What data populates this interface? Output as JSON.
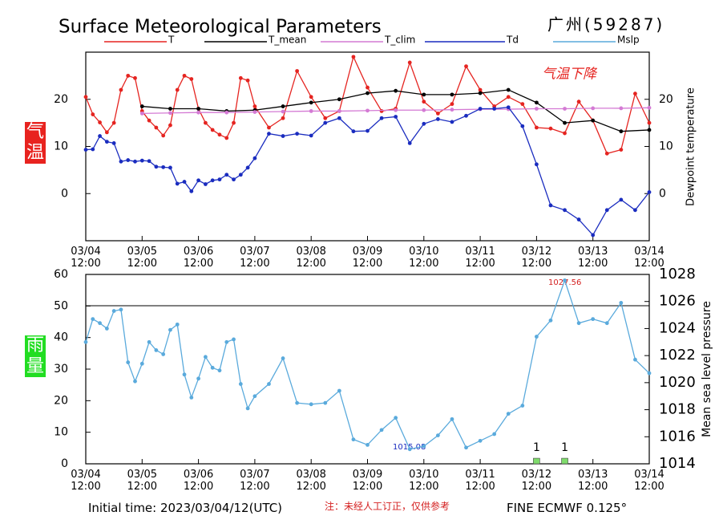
{
  "chart_data": [
    {
      "type": "line",
      "title": "Surface Meteorological Parameters",
      "station": "广州(59287)",
      "ylabel": "气温",
      "y2label": "Dewpoint temperature",
      "annotation": "气温下降",
      "xlim": [
        "03/04 12:00",
        "03/14 12:00"
      ],
      "xticks": [
        "03/04 12:00",
        "03/05 12:00",
        "03/06 12:00",
        "03/07 12:00",
        "03/08 12:00",
        "03/09 12:00",
        "03/10 12:00",
        "03/11 12:00",
        "03/12 12:00",
        "03/13 12:00",
        "03/14 12:00"
      ],
      "ylim": [
        -10,
        30
      ],
      "yticks": [
        0,
        10,
        20
      ],
      "y2lim": [
        -10,
        30
      ],
      "y2ticks": [
        0,
        10,
        20
      ],
      "x": [
        "03/04 12:00",
        "03/04 15:00",
        "03/04 18:00",
        "03/04 21:00",
        "03/05 00:00",
        "03/05 03:00",
        "03/05 06:00",
        "03/05 09:00",
        "03/05 12:00",
        "03/05 15:00",
        "03/05 18:00",
        "03/05 21:00",
        "03/06 00:00",
        "03/06 03:00",
        "03/06 06:00",
        "03/06 09:00",
        "03/06 12:00",
        "03/06 15:00",
        "03/06 18:00",
        "03/06 21:00",
        "03/07 00:00",
        "03/07 03:00",
        "03/07 06:00",
        "03/07 09:00",
        "03/07 12:00",
        "03/07 18:00",
        "03/08 00:00",
        "03/08 06:00",
        "03/08 12:00",
        "03/08 18:00",
        "03/09 00:00",
        "03/09 06:00",
        "03/09 12:00",
        "03/09 18:00",
        "03/10 00:00",
        "03/10 06:00",
        "03/10 12:00",
        "03/10 18:00",
        "03/11 00:00",
        "03/11 06:00",
        "03/11 12:00",
        "03/11 18:00",
        "03/12 00:00",
        "03/12 06:00",
        "03/12 12:00",
        "03/12 18:00",
        "03/13 00:00",
        "03/13 06:00",
        "03/13 12:00",
        "03/13 18:00",
        "03/14 00:00",
        "03/14 06:00",
        "03/14 12:00"
      ],
      "series": [
        {
          "name": "T",
          "color": "#e52420",
          "markers": true,
          "values": [
            20.5,
            16.8,
            15.1,
            13,
            15,
            22,
            25,
            24.5,
            17.5,
            15.5,
            14,
            12.3,
            14.5,
            22,
            25,
            24.3,
            18,
            15,
            13.5,
            12.5,
            11.8,
            15,
            24.5,
            24,
            18.5,
            14,
            16,
            26,
            20.5,
            16,
            17.5,
            29,
            22.5,
            17.5,
            18,
            27.8,
            19.5,
            17,
            19,
            27,
            22,
            18.5,
            20.5,
            19,
            14,
            13.8,
            12.8,
            19.5,
            15.5,
            8.5,
            9.3,
            21.2,
            15
          ]
        },
        {
          "name": "T_mean",
          "color": "#000000",
          "markers": true,
          "x": [
            "03/05 12:00",
            "03/06 00:00",
            "03/06 12:00",
            "03/07 00:00",
            "03/07 12:00",
            "03/08 00:00",
            "03/08 12:00",
            "03/09 00:00",
            "03/09 12:00",
            "03/10 00:00",
            "03/10 12:00",
            "03/11 00:00",
            "03/11 12:00",
            "03/12 00:00",
            "03/12 12:00",
            "03/13 00:00",
            "03/13 12:00",
            "03/14 00:00",
            "03/14 12:00"
          ],
          "values": [
            18.5,
            18,
            18,
            17.5,
            17.7,
            18.5,
            19.3,
            20,
            21.3,
            21.8,
            21,
            21,
            21.3,
            22,
            19.3,
            15,
            15.5,
            13.2,
            13.5
          ]
        },
        {
          "name": "T_clim",
          "color": "#d47ad4",
          "markers": true,
          "x": [
            "03/05 12:00",
            "03/06 00:00",
            "03/06 12:00",
            "03/07 00:00",
            "03/07 12:00",
            "03/08 00:00",
            "03/08 12:00",
            "03/09 00:00",
            "03/09 12:00",
            "03/10 00:00",
            "03/10 12:00",
            "03/11 00:00",
            "03/11 12:00",
            "03/12 00:00",
            "03/12 12:00",
            "03/13 00:00",
            "03/13 12:00",
            "03/14 00:00",
            "03/14 12:00"
          ],
          "values": [
            17.0,
            17.1,
            17.2,
            17.2,
            17.3,
            17.4,
            17.5,
            17.5,
            17.6,
            17.7,
            17.7,
            17.8,
            17.9,
            17.9,
            18.0,
            18.0,
            18.1,
            18.1,
            18.2
          ]
        },
        {
          "name": "Td",
          "color": "#1a2cbf",
          "markers": true,
          "axis": "y2",
          "values": [
            9.3,
            9.4,
            12.2,
            11,
            10.7,
            6.8,
            7.1,
            6.8,
            7,
            6.9,
            5.7,
            5.6,
            5.5,
            2.1,
            2.5,
            0.5,
            2.8,
            2,
            2.8,
            3,
            4,
            3,
            4,
            5.5,
            7.5,
            12.7,
            12.2,
            12.7,
            12.3,
            15,
            16,
            13.2,
            13.3,
            16,
            16.3,
            10.7,
            14.8,
            15.8,
            15.2,
            16.5,
            18,
            18,
            18.3,
            14.3,
            6.2,
            -2.5,
            -3.5,
            -5.5,
            -8.8,
            -3.5,
            -1.3,
            -3.5,
            0.3
          ]
        }
      ]
    },
    {
      "type": "line",
      "ylabel": "雨量",
      "y2label": "Mean sea level pressure",
      "annotations": [
        "1027.56",
        "1015.08"
      ],
      "xlim": [
        "03/04 12:00",
        "03/14 12:00"
      ],
      "xticks": [
        "03/04 12:00",
        "03/05 12:00",
        "03/06 12:00",
        "03/07 12:00",
        "03/08 12:00",
        "03/09 12:00",
        "03/10 12:00",
        "03/11 12:00",
        "03/12 12:00",
        "03/13 12:00",
        "03/14 12:00"
      ],
      "ylim": [
        0,
        60
      ],
      "yticks": [
        0,
        10,
        20,
        30,
        40,
        50,
        60
      ],
      "y2lim": [
        1014,
        1028
      ],
      "y2ticks": [
        1014,
        1016,
        1018,
        1020,
        1022,
        1024,
        1026,
        1028
      ],
      "x": [
        "03/04 12:00",
        "03/04 15:00",
        "03/04 18:00",
        "03/04 21:00",
        "03/05 00:00",
        "03/05 03:00",
        "03/05 06:00",
        "03/05 09:00",
        "03/05 12:00",
        "03/05 15:00",
        "03/05 18:00",
        "03/05 21:00",
        "03/06 00:00",
        "03/06 03:00",
        "03/06 06:00",
        "03/06 09:00",
        "03/06 12:00",
        "03/06 15:00",
        "03/06 18:00",
        "03/06 21:00",
        "03/07 00:00",
        "03/07 03:00",
        "03/07 06:00",
        "03/07 09:00",
        "03/07 12:00",
        "03/07 18:00",
        "03/08 00:00",
        "03/08 06:00",
        "03/08 12:00",
        "03/08 18:00",
        "03/09 00:00",
        "03/09 06:00",
        "03/09 12:00",
        "03/09 18:00",
        "03/10 00:00",
        "03/10 06:00",
        "03/10 12:00",
        "03/10 18:00",
        "03/11 00:00",
        "03/11 06:00",
        "03/11 12:00",
        "03/11 18:00",
        "03/12 00:00",
        "03/12 06:00",
        "03/12 12:00",
        "03/12 18:00",
        "03/13 00:00",
        "03/13 06:00",
        "03/13 12:00",
        "03/13 18:00",
        "03/14 00:00",
        "03/14 06:00",
        "03/14 12:00"
      ],
      "series": [
        {
          "name": "Mslp",
          "color": "#5aaadc",
          "markers": true,
          "axis": "y2",
          "values": [
            1023.0,
            1024.7,
            1024.4,
            1024.0,
            1025.3,
            1025.4,
            1021.5,
            1020.1,
            1021.4,
            1023.0,
            1022.4,
            1022.1,
            1023.9,
            1024.3,
            1020.6,
            1018.9,
            1020.3,
            1021.9,
            1021.1,
            1020.9,
            1023.0,
            1023.2,
            1019.9,
            1018.1,
            1019.0,
            1019.9,
            1021.8,
            1018.5,
            1018.4,
            1018.5,
            1019.4,
            1015.8,
            1015.4,
            1016.5,
            1017.4,
            1015.08,
            1015.3,
            1016.1,
            1017.3,
            1015.2,
            1015.7,
            1016.2,
            1017.7,
            1018.3,
            1023.4,
            1024.6,
            1027.56,
            1024.4,
            1024.7,
            1024.4,
            1025.9,
            1021.7,
            1020.7
          ]
        }
      ],
      "bars": {
        "color": "#7fdc6c",
        "x": [
          "03/12 12:00",
          "03/13 00:00"
        ],
        "values": [
          1,
          1
        ]
      }
    }
  ],
  "footer": {
    "initial_time": "Initial time: 2023/03/04/12(UTC)",
    "note": "注：未经人工订正，仅供参考",
    "model": "FINE ECMWF 0.125°"
  }
}
